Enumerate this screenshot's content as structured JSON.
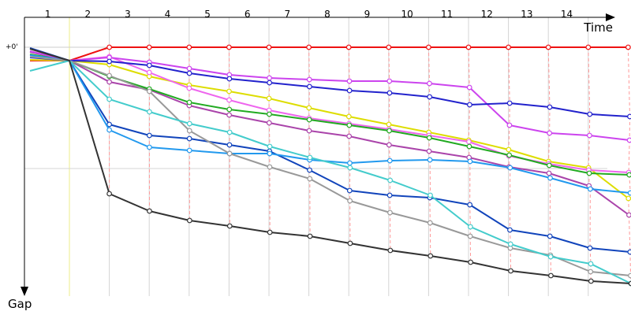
{
  "chart_data": {
    "type": "line",
    "xlabel": "Time",
    "ylabel": "Gap",
    "zero_label": "+0'",
    "x_ticks": [
      "1",
      "2",
      "3",
      "4",
      "5",
      "6",
      "7",
      "8",
      "9",
      "10",
      "11",
      "12",
      "13",
      "14"
    ],
    "grid": true,
    "guide_color": "#ff9999",
    "series": [
      {
        "color": "#ee1111",
        "start": 77,
        "values": [
          60,
          60,
          60,
          60,
          60,
          60,
          60,
          60,
          60,
          60,
          60,
          60,
          60,
          60
        ]
      },
      {
        "color": "#dddd00",
        "start": 76,
        "values": [
          82,
          97,
          108,
          116,
          125,
          137,
          148,
          158,
          168,
          178,
          190,
          205,
          213,
          252
        ]
      },
      {
        "color": "#ee66ee",
        "start": 70,
        "values": [
          72,
          92,
          112,
          127,
          140,
          150,
          157,
          164,
          172,
          180,
          198,
          208,
          216,
          219
        ]
      },
      {
        "color": "#aa44aa",
        "start": 66,
        "values": [
          104,
          114,
          134,
          146,
          156,
          166,
          173,
          184,
          192,
          200,
          212,
          220,
          236,
          273
        ]
      },
      {
        "color": "#22aa22",
        "start": 69,
        "values": [
          97,
          113,
          130,
          139,
          145,
          152,
          159,
          166,
          175,
          186,
          197,
          210,
          220,
          222
        ]
      },
      {
        "color": "#cc44ee",
        "start": 65,
        "values": [
          73,
          79,
          87,
          95,
          99,
          101,
          103,
          103,
          106,
          111,
          159,
          169,
          172,
          178
        ]
      },
      {
        "color": "#2222cc",
        "start": 73,
        "values": [
          78,
          83,
          93,
          100,
          105,
          110,
          115,
          118,
          123,
          133,
          131,
          136,
          145,
          148
        ]
      },
      {
        "color": "#1144bb",
        "start": 61,
        "values": [
          158,
          172,
          176,
          184,
          192,
          216,
          242,
          248,
          251,
          260,
          292,
          300,
          315,
          320
        ]
      },
      {
        "color": "#2299ee",
        "start": 70,
        "values": [
          165,
          187,
          191,
          195,
          195,
          203,
          207,
          204,
          203,
          205,
          213,
          226,
          240,
          245
        ]
      },
      {
        "color": "#999999",
        "start": 72,
        "values": [
          96,
          116,
          166,
          195,
          212,
          227,
          255,
          270,
          283,
          300,
          315,
          324,
          345,
          350
        ]
      },
      {
        "color": "#44cccc",
        "start": 90,
        "values": [
          126,
          142,
          157,
          168,
          186,
          200,
          213,
          229,
          248,
          288,
          310,
          326,
          335,
          360
        ]
      },
      {
        "color": "#333333",
        "start": 62,
        "values": [
          246,
          268,
          280,
          287,
          295,
          300,
          309,
          318,
          325,
          333,
          344,
          350,
          357,
          360
        ]
      }
    ]
  }
}
